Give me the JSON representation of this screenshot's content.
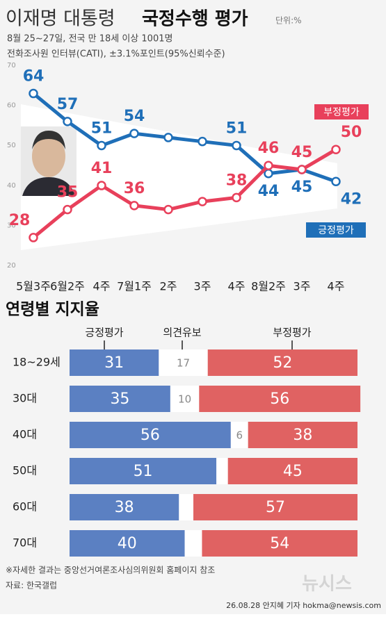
{
  "header": {
    "title_plain": "이재명 대통령",
    "title_bold": "국정수행 평가",
    "unit": "단위:%",
    "subtitle_1": "8월 25~27일, 전국 만 18세 이상 1001명",
    "subtitle_2": "전화조사원 인터뷰(CATI), ±3.1%포인트(95%신뢰수준)"
  },
  "chart_data": [
    {
      "type": "line",
      "categories": [
        "5월3주",
        "6월2주",
        "4주",
        "7월1주",
        "2주",
        "3주",
        "4주",
        "8월2주",
        "3주",
        "4주"
      ],
      "ylim": [
        20,
        70
      ],
      "yticks": [
        20,
        30,
        40,
        50,
        60,
        70
      ],
      "series": [
        {
          "name": "긍정평가",
          "color": "#1f6fb8",
          "values": [
            64,
            57,
            51,
            54,
            53,
            52,
            51,
            44,
            45,
            42
          ],
          "value_labels": [
            64,
            57,
            51,
            54,
            null,
            null,
            51,
            44,
            45,
            42
          ]
        },
        {
          "name": "부정평가",
          "color": "#e8405b",
          "values": [
            28,
            35,
            41,
            36,
            35,
            37,
            38,
            46,
            45,
            50
          ],
          "value_labels": [
            28,
            35,
            41,
            36,
            null,
            null,
            38,
            46,
            45,
            50
          ]
        }
      ]
    },
    {
      "type": "stacked-bar",
      "title": "연령별 지지율",
      "categories": [
        "18~29세",
        "30대",
        "40대",
        "50대",
        "60대",
        "70대"
      ],
      "series": [
        {
          "name": "긍정평가",
          "color": "#5b80c2",
          "values": [
            31,
            35,
            56,
            51,
            38,
            40
          ],
          "value_labels": [
            31,
            35,
            56,
            51,
            38,
            40
          ]
        },
        {
          "name": "의견유보",
          "color": "#ffffff",
          "values": [
            17,
            10,
            6,
            4,
            5,
            6
          ],
          "value_labels": [
            17,
            10,
            6,
            null,
            null,
            null
          ]
        },
        {
          "name": "부정평가",
          "color": "#e06262",
          "values": [
            52,
            56,
            38,
            45,
            57,
            54
          ],
          "value_labels": [
            52,
            56,
            38,
            45,
            57,
            54
          ]
        }
      ]
    }
  ],
  "footer": {
    "note": "※자세한 결과는 중앙선거여론조사심의위원회 홈페이지 참조",
    "source": "자료: 한국갤럽",
    "credit": "26.08.28 안지혜 기자 hokma@newsis.com",
    "logo": "뉴시스"
  }
}
